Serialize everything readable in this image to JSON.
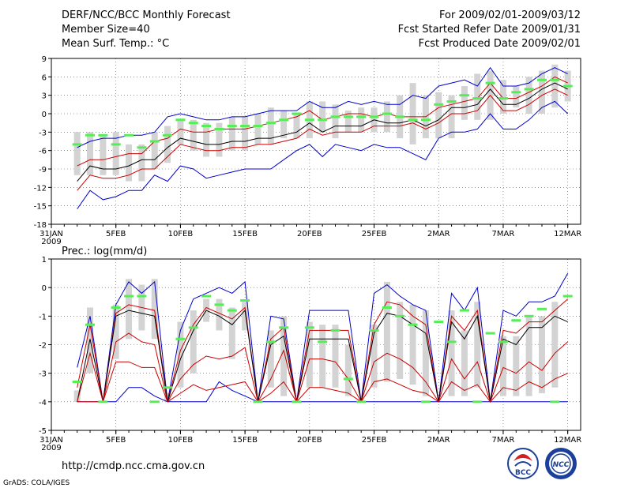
{
  "header": {
    "title": "DERF/NCC/BCC Monthly Forecast",
    "member": "Member Size=40",
    "variable": "Mean Surf. Temp.: °C",
    "period": "For 2009/02/01-2009/03/12",
    "refer": "Fcst Started Refer Date 2009/01/31",
    "produced": "Fcst Produced Date 2009/02/01"
  },
  "footer": {
    "url": "http://cmdp.ncc.cma.gov.cn",
    "credit": "GrADS: COLA/IGES"
  },
  "logos": {
    "bcc": "BCC",
    "ncc": "NCC"
  },
  "colors": {
    "spread": "#d3d3d3",
    "mean": "#000000",
    "inner": "#cc0000",
    "outer": "#0000cc",
    "obs": "#55ee55"
  },
  "chart_data": [
    {
      "type": "line",
      "title": "Mean Surf. Temp.: °C",
      "x_labels": [
        "31JAN",
        "5FEB",
        "10FEB",
        "15FEB",
        "20FEB",
        "25FEB",
        "2MAR",
        "7MAR",
        "12MAR"
      ],
      "x_label_days": [
        0,
        5,
        10,
        15,
        20,
        25,
        30,
        35,
        40
      ],
      "year_label": "2009",
      "xlim": [
        0,
        41
      ],
      "ylim": [
        -18,
        9
      ],
      "yticks": [
        9,
        6,
        3,
        0,
        -3,
        -6,
        -9,
        -12,
        -15,
        -18
      ],
      "days": [
        2,
        3,
        4,
        5,
        6,
        7,
        8,
        9,
        10,
        11,
        12,
        13,
        14,
        15,
        16,
        17,
        18,
        19,
        20,
        21,
        22,
        23,
        24,
        25,
        26,
        27,
        28,
        29,
        30,
        31,
        32,
        33,
        34,
        35,
        36,
        37,
        38,
        39,
        40
      ],
      "series": [
        {
          "name": "box_top",
          "values": [
            -3,
            -3,
            -3.5,
            -3,
            -5,
            -5,
            -3,
            -2,
            -1,
            -1,
            -1.5,
            -1.5,
            -0.5,
            -0.5,
            0,
            1,
            0.5,
            0,
            2,
            2,
            1.5,
            0.5,
            1,
            1,
            2,
            3,
            5,
            3,
            3.5,
            3,
            4.5,
            6.5,
            7,
            5.5,
            4.5,
            6,
            7,
            8,
            7
          ]
        },
        {
          "name": "box_bottom",
          "values": [
            -10,
            -10,
            -10,
            -10,
            -11,
            -11,
            -9,
            -8,
            -5,
            -6,
            -7,
            -7,
            -6,
            -6,
            -5,
            -5,
            -4,
            -4,
            -4,
            -3,
            -4,
            -3,
            -3,
            -3,
            -3,
            -4,
            -5,
            -4,
            -4,
            -4,
            -1,
            -1,
            -1,
            0,
            1,
            0,
            0,
            1,
            2
          ]
        },
        {
          "name": "upper_blue",
          "values": [
            -5.5,
            -4.5,
            -4,
            -4,
            -3.5,
            -3.5,
            -3,
            -0.5,
            0,
            -0.5,
            -1,
            -1,
            -0.5,
            -0.5,
            0,
            0.5,
            0.5,
            0.5,
            2,
            1,
            1,
            2,
            1.5,
            2,
            1.5,
            1.5,
            3,
            2.5,
            4.5,
            5,
            5.5,
            4.5,
            7.5,
            4.5,
            4.5,
            5,
            6.5,
            7.5,
            6.5
          ]
        },
        {
          "name": "upper_red",
          "values": [
            -8.5,
            -7.5,
            -7.5,
            -7,
            -6.5,
            -6.5,
            -4.5,
            -4,
            -2.5,
            -3,
            -3,
            -2.5,
            -2.5,
            -2.5,
            -2,
            -1.5,
            -1,
            -0.5,
            0.5,
            -1,
            -0.5,
            0,
            0,
            -0.5,
            0,
            -0.5,
            -0.5,
            -0.5,
            1,
            1.5,
            2,
            2.5,
            5,
            2.5,
            2.5,
            3.5,
            4.5,
            6,
            5
          ]
        },
        {
          "name": "ensemble_mean",
          "values": [
            -11,
            -8.5,
            -9,
            -9,
            -8.5,
            -7.5,
            -7.5,
            -5.5,
            -4,
            -4.5,
            -5,
            -5,
            -4.5,
            -4.5,
            -4,
            -4,
            -3.5,
            -3,
            -1.5,
            -3,
            -2,
            -2,
            -2,
            -1,
            -1.5,
            -1.5,
            -1,
            -2,
            -1,
            1,
            1,
            1.5,
            4,
            1.5,
            1.5,
            2.5,
            4,
            5,
            4
          ]
        },
        {
          "name": "lower_red",
          "values": [
            -12.5,
            -10,
            -10.5,
            -10.5,
            -10,
            -9,
            -9,
            -7,
            -5,
            -5.5,
            -6,
            -6,
            -5.5,
            -5.5,
            -5,
            -5,
            -4.5,
            -4,
            -2.5,
            -3.5,
            -3,
            -3,
            -3,
            -2,
            -2,
            -2,
            -1.5,
            -2.5,
            -1.5,
            0,
            0,
            0.5,
            3,
            0.5,
            0.5,
            1.5,
            3,
            4,
            3
          ]
        },
        {
          "name": "lower_blue",
          "values": [
            -15.5,
            -12.5,
            -14,
            -13.5,
            -12.5,
            -12.5,
            -10,
            -11,
            -8.5,
            -9,
            -10.5,
            -10,
            -9.5,
            -9,
            -9,
            -9,
            -7.5,
            -6,
            -5,
            -7,
            -5,
            -5.5,
            -6,
            -5,
            -5.5,
            -5.5,
            -6.5,
            -7.5,
            -4,
            -3,
            -3,
            -2.5,
            0,
            -2.5,
            -2.5,
            -1,
            1,
            2,
            0
          ]
        },
        {
          "name": "observed",
          "values": [
            -5,
            -3.5,
            -3.5,
            -5,
            -3.5,
            -5.5,
            -4.5,
            -3.5,
            -1,
            -1.5,
            -2,
            -2.5,
            -2,
            -2,
            -2,
            -1.5,
            -1,
            0,
            -1,
            -1,
            -0.5,
            -0.5,
            -0.5,
            -0.5,
            0,
            -0.5,
            -1,
            -1,
            1.5,
            2,
            3,
            2.5,
            5,
            2.5,
            3.5,
            4,
            5.5,
            5.5,
            4.5
          ]
        }
      ]
    },
    {
      "type": "line",
      "title": "Prec.: log(mm/d)",
      "x_labels": [
        "31JAN",
        "5FEB",
        "10FEB",
        "15FEB",
        "20FEB",
        "25FEB",
        "2MAR",
        "7MAR",
        "12MAR"
      ],
      "x_label_days": [
        0,
        5,
        10,
        15,
        20,
        25,
        30,
        35,
        40
      ],
      "year_label": "2009",
      "xlim": [
        0,
        41
      ],
      "ylim": [
        -5,
        1
      ],
      "yticks": [
        1,
        0,
        -1,
        -2,
        -3,
        -4,
        -5
      ],
      "days": [
        2,
        3,
        4,
        5,
        6,
        7,
        8,
        9,
        10,
        11,
        12,
        13,
        14,
        15,
        16,
        17,
        18,
        19,
        20,
        21,
        22,
        23,
        24,
        25,
        26,
        27,
        28,
        29,
        30,
        31,
        32,
        33,
        34,
        35,
        36,
        37,
        38,
        39,
        40
      ],
      "series": [
        {
          "name": "box_top",
          "values": [
            -3.6,
            -0.7,
            -4,
            -0.6,
            0.3,
            0.1,
            0.3,
            -3.7,
            -1.2,
            -0.8,
            -0.4,
            -0.4,
            -0.7,
            -0.5,
            -4,
            -1.5,
            -1,
            -4,
            -1.2,
            -1.3,
            -1.3,
            -2,
            -4,
            -1.3,
            0.2,
            -0.5,
            -0.6,
            -0.8,
            -4,
            -0.8,
            -1.5,
            -0.5,
            -4,
            -1.7,
            -1.7,
            -1,
            -1,
            -0.5,
            -4
          ]
        },
        {
          "name": "box_bottom",
          "values": [
            -4,
            -3,
            -4,
            -2.5,
            -1.8,
            -1.5,
            -1.8,
            -4,
            -3.5,
            -3,
            -1.2,
            -1.5,
            -2.5,
            -1.5,
            -4,
            -3.5,
            -3.8,
            -4,
            -3.5,
            -3.5,
            -3.5,
            -3.8,
            -4,
            -3.5,
            -3.3,
            -3.2,
            -3.4,
            -3.8,
            -4,
            -3.8,
            -3.8,
            -3.5,
            -4,
            -3.8,
            -3.8,
            -3.8,
            -3.7,
            -3.5,
            -4
          ]
        },
        {
          "name": "upper_blue",
          "values": [
            -2.8,
            -1,
            -4,
            -0.6,
            0.2,
            -0.2,
            0.2,
            -4,
            -1.5,
            -0.4,
            -0.2,
            0,
            -0.2,
            0.2,
            -4,
            -1,
            -1.1,
            -4,
            -0.8,
            -0.8,
            -0.8,
            -0.8,
            -4,
            -0.2,
            0.1,
            -0.3,
            -0.6,
            -0.8,
            -4,
            -0.2,
            -0.8,
            0,
            -4,
            -0.8,
            -1,
            -0.5,
            -0.5,
            -0.3,
            0.5
          ]
        },
        {
          "name": "upper_red",
          "values": [
            -3.5,
            -1.3,
            -4,
            -0.9,
            -0.6,
            -0.7,
            -0.8,
            -4,
            -2.2,
            -1.3,
            -0.7,
            -0.9,
            -1.1,
            -0.7,
            -4,
            -1.8,
            -1.4,
            -4,
            -1.5,
            -1.5,
            -1.5,
            -1.5,
            -4,
            -1.3,
            -0.5,
            -0.6,
            -1,
            -1.3,
            -4,
            -1,
            -1.5,
            -0.8,
            -4,
            -1.5,
            -1.6,
            -1.2,
            -1.2,
            -0.8,
            -0.4
          ]
        },
        {
          "name": "ensemble_mean",
          "values": [
            -4,
            -1.8,
            -4,
            -1,
            -0.8,
            -0.9,
            -1,
            -4,
            -2.5,
            -1.5,
            -0.8,
            -1,
            -1.3,
            -0.8,
            -4,
            -2,
            -1.7,
            -4,
            -1.8,
            -1.8,
            -1.8,
            -1.8,
            -4,
            -1.6,
            -0.9,
            -1,
            -1.3,
            -1.6,
            -4,
            -1.2,
            -1.8,
            -1,
            -4,
            -1.8,
            -2,
            -1.4,
            -1.4,
            -1,
            -1.2
          ]
        },
        {
          "name": "lower_red",
          "values": [
            -4,
            -2.3,
            -4,
            -1.9,
            -1.6,
            -1.9,
            -2,
            -4,
            -3.2,
            -2.7,
            -2.4,
            -2.5,
            -2.4,
            -2.1,
            -4,
            -3.2,
            -2.2,
            -4,
            -2.5,
            -2.5,
            -2.6,
            -3.2,
            -4,
            -2.6,
            -2.3,
            -2.5,
            -2.8,
            -3.3,
            -4,
            -2.5,
            -3.2,
            -2.6,
            -4,
            -2.8,
            -3,
            -2.6,
            -2.9,
            -2.3,
            -1.9
          ]
        },
        {
          "name": "lower_blue",
          "values": [
            -4,
            -4,
            -4,
            -4,
            -3.5,
            -3.5,
            -3.8,
            -4,
            -4,
            -4,
            -4,
            -3.3,
            -3.6,
            -3.8,
            -4,
            -4,
            -4,
            -4,
            -4,
            -4,
            -4,
            -4,
            -4,
            -4,
            -4,
            -4,
            -4,
            -4,
            -4,
            -4,
            -4,
            -4,
            -4,
            -4,
            -4,
            -4,
            -4,
            -4,
            -4
          ]
        },
        {
          "name": "extra_red",
          "values": [
            -4,
            -4,
            -4,
            -2.6,
            -2.6,
            -2.8,
            -2.8,
            -4,
            -3.7,
            -3.4,
            -3.6,
            -3.5,
            -3.4,
            -3.3,
            -4,
            -3.7,
            -3.3,
            -4,
            -3.5,
            -3.5,
            -3.6,
            -3.7,
            -4,
            -3.3,
            -3.2,
            -3.4,
            -3.6,
            -3.7,
            -4,
            -3.3,
            -3.6,
            -3.4,
            -4,
            -3.5,
            -3.6,
            -3.3,
            -3.5,
            -3.2,
            -3
          ]
        },
        {
          "name": "observed",
          "values": [
            -3.3,
            -1.3,
            -4,
            -0.7,
            -0.3,
            -0.3,
            -4,
            -3.5,
            -1.8,
            -1.4,
            -0.3,
            -0.6,
            -0.8,
            -0.45,
            -4,
            -1.9,
            -1.4,
            -4,
            -1.4,
            -1.9,
            -1.5,
            -3.2,
            -4,
            -1.5,
            -0.7,
            -1,
            -1.3,
            -4,
            -1.2,
            -1.9,
            -0.8,
            -4,
            -1.6,
            -1.9,
            -1.15,
            -1,
            -0.75,
            -4,
            -0.3
          ]
        }
      ]
    }
  ]
}
